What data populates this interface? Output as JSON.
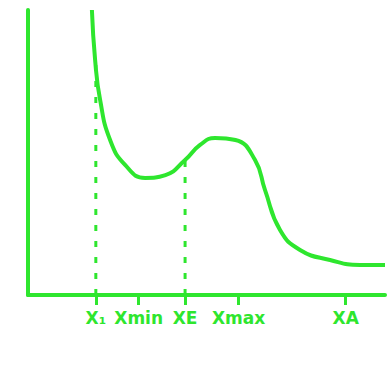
{
  "chart_data": {
    "type": "line",
    "color": "#2ee62e",
    "x": [
      1.79,
      1.88,
      2.02,
      2.3,
      2.72,
      3.28,
      3.85,
      4.4,
      4.82,
      5.24,
      5.81,
      6.36,
      6.64,
      7.06,
      7.62,
      8.46,
      9.3,
      10.0
    ],
    "values": [
      11.0,
      9.07,
      7.53,
      5.98,
      5.02,
      4.52,
      4.63,
      5.21,
      5.79,
      6.06,
      5.98,
      5.21,
      4.05,
      2.51,
      1.74,
      1.35,
      1.16,
      1.16
    ],
    "xlim": [
      0,
      10
    ],
    "xticks": [
      {
        "value": 1.9,
        "label": "X₁"
      },
      {
        "value": 3.1,
        "label": "Xmin"
      },
      {
        "value": 4.4,
        "label": "XE"
      },
      {
        "value": 5.9,
        "label": "Xmax"
      },
      {
        "value": 8.9,
        "label": "XA"
      }
    ],
    "ylim": [
      0,
      11
    ],
    "yticks": [],
    "dashed_lines": [
      {
        "x": 1.9,
        "y": 9.0
      },
      {
        "x": 4.4,
        "y": 5.2
      }
    ],
    "grid": false,
    "tick_labels": "x"
  }
}
